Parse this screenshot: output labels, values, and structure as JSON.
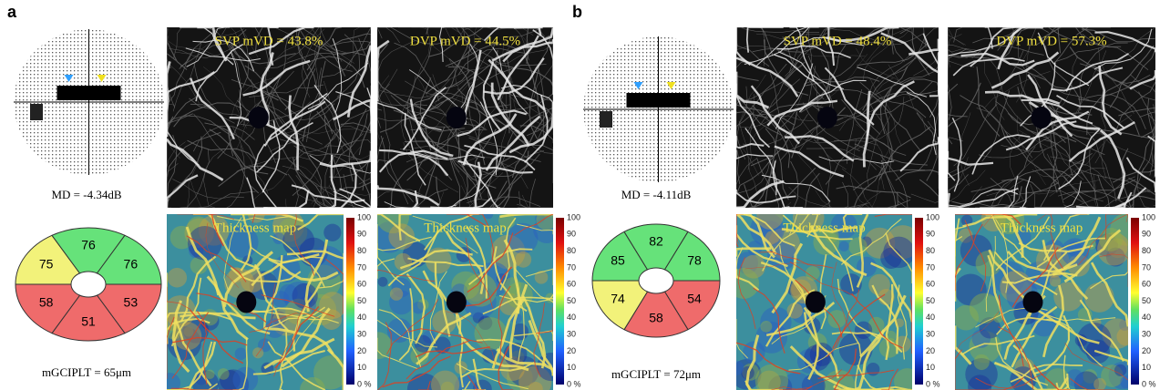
{
  "panels": [
    {
      "label": "a",
      "md": "MD = -4.34dB",
      "mgciplt": "mGCIPLT = 65μm",
      "sectors": [
        {
          "value": 75,
          "color": "#f2f27a"
        },
        {
          "value": 76,
          "color": "#66e27a"
        },
        {
          "value": 76,
          "color": "#66e27a"
        },
        {
          "value": 53,
          "color": "#ef6b6b"
        },
        {
          "value": 51,
          "color": "#ef6b6b"
        },
        {
          "value": 58,
          "color": "#ef6b6b"
        }
      ],
      "svp": "SVP mVD = 43.8%",
      "dvp": "DVP mVD = 44.5%",
      "thickness_maps": [
        "Thickness map",
        "Thickness map"
      ]
    },
    {
      "label": "b",
      "md": "MD = -4.11dB",
      "mgciplt": "mGCIPLT = 72μm",
      "sectors": [
        {
          "value": 85,
          "color": "#66e27a"
        },
        {
          "value": 82,
          "color": "#66e27a"
        },
        {
          "value": 78,
          "color": "#66e27a"
        },
        {
          "value": 54,
          "color": "#ef6b6b"
        },
        {
          "value": 58,
          "color": "#ef6b6b"
        },
        {
          "value": 74,
          "color": "#f2f27a"
        }
      ],
      "svp": "SVP mVD = 48.4%",
      "dvp": "DVP mVD = 57.3%",
      "thickness_maps": [
        "Thickness map",
        "Thickness map"
      ]
    }
  ],
  "colorbar_ticks": [
    "100",
    "90",
    "80",
    "70",
    "60",
    "50",
    "40",
    "30",
    "20",
    "10",
    "0 %"
  ]
}
